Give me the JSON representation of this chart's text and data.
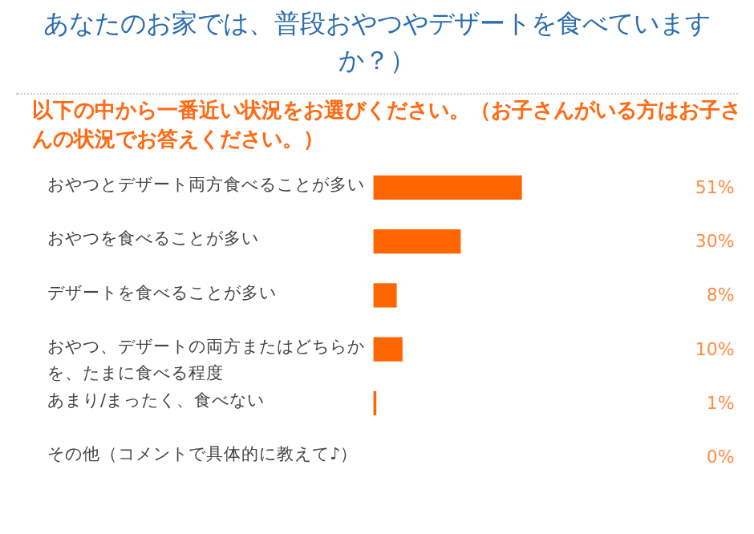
{
  "chart_data": {
    "type": "bar",
    "orientation": "horizontal",
    "title": "あなたのお家では、普段おやつやデザートを食べていますか？）",
    "subtitle": "以下の中から一番近い状況をお選びください。（お子さんがいる方はお子さんの状況でお答えください。）",
    "categories": [
      "おやつとデザート両方食べることが多い",
      "おやつを食べることが多い",
      "デザートを食べることが多い",
      "おやつ、デザートの両方またはどちらかを、たまに食べる程度",
      "あまり/まったく、食べない",
      "その他（コメントで具体的に教えて♪）"
    ],
    "values": [
      51,
      30,
      8,
      10,
      1,
      0
    ],
    "color": "#ff6600",
    "value_labels": [
      "51%",
      "30%",
      "8%",
      "10%",
      "1%",
      "0%"
    ]
  }
}
